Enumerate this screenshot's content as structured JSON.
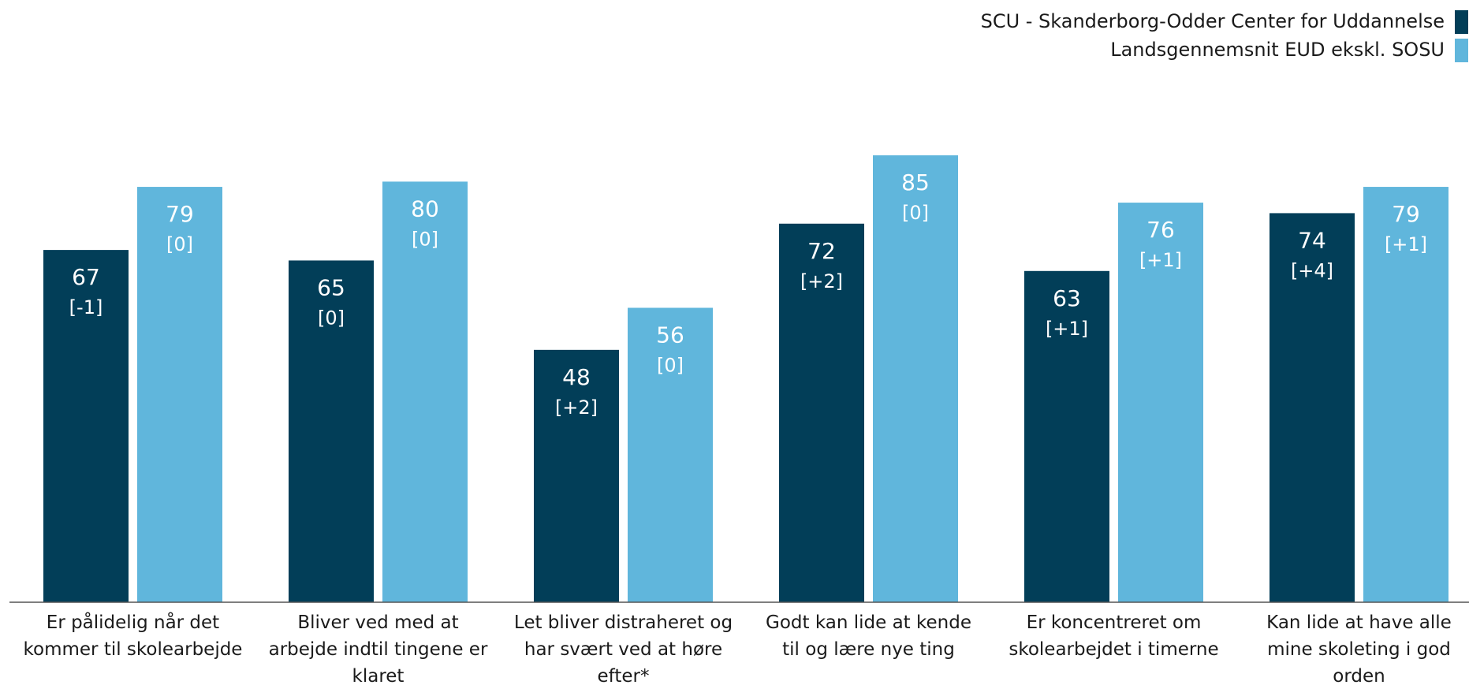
{
  "chart_data": {
    "type": "bar",
    "categories": [
      "Er pålidelig når det kommer til skolearbejde",
      "Bliver ved med at arbejde indtil tingene er klaret",
      "Let bliver distraheret og har svært ved at høre efter*",
      "Godt kan lide at kende til og lære nye ting",
      "Er koncentreret om skolearbejdet i timerne",
      "Kan lide at have alle mine skoleting i god orden"
    ],
    "series": [
      {
        "name": "SCU - Skanderborg-Odder Center for Uddannelse",
        "color": "#023e58",
        "label_color": "#ffffff",
        "values": [
          67,
          65,
          48,
          72,
          63,
          74
        ],
        "changes": [
          "[-1]",
          "[0]",
          "[+2]",
          "[+2]",
          "[+1]",
          "[+4]"
        ]
      },
      {
        "name": "Landsgennemsnit EUD ekskl. SOSU",
        "color": "#60b6dc",
        "label_color": "#ffffff",
        "values": [
          79,
          80,
          56,
          85,
          76,
          79
        ],
        "changes": [
          "[0]",
          "[0]",
          "[0]",
          "[0]",
          "[+1]",
          "[+1]"
        ]
      }
    ],
    "ylim": [
      0,
      100
    ]
  }
}
